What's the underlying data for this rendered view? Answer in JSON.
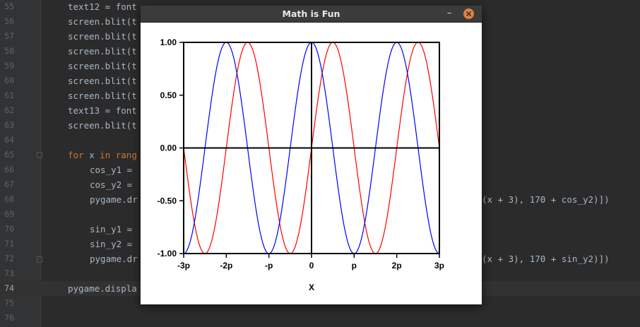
{
  "window": {
    "title": "Math is Fun",
    "minimize_label": "–"
  },
  "editor": {
    "lines": [
      {
        "num": "55",
        "code": "text12 = font"
      },
      {
        "num": "56",
        "code": "screen.blit(t"
      },
      {
        "num": "57",
        "code": "screen.blit(t"
      },
      {
        "num": "58",
        "code": "screen.blit(t"
      },
      {
        "num": "59",
        "code": "screen.blit(t"
      },
      {
        "num": "60",
        "code": "screen.blit(t"
      },
      {
        "num": "61",
        "code": "screen.blit(t"
      },
      {
        "num": "62",
        "code": "text13 = font"
      },
      {
        "num": "63",
        "code": "screen.blit(t"
      },
      {
        "num": "64",
        "code": ""
      },
      {
        "num": "65",
        "code": "for x in rang"
      },
      {
        "num": "66",
        "code": "cos_y1 ="
      },
      {
        "num": "67",
        "code": "cos_y2 ="
      },
      {
        "num": "68",
        "code": "pygame.dr"
      },
      {
        "num": "69",
        "code": ""
      },
      {
        "num": "70",
        "code": "sin_y1 ="
      },
      {
        "num": "71",
        "code": "sin_y2 ="
      },
      {
        "num": "72",
        "code": "pygame.dr"
      },
      {
        "num": "73",
        "code": ""
      },
      {
        "num": "74",
        "code": "pygame.displa"
      },
      {
        "num": "75",
        "code": ""
      },
      {
        "num": "76",
        "code": ""
      }
    ],
    "overflow_68": "(x + 3), 170 + cos_y2)])",
    "overflow_72": "(x + 3), 170 + sin_y2)])"
  },
  "chart_data": {
    "type": "line",
    "title": "",
    "xlabel": "X",
    "ylabel": "",
    "xlim": [
      -3,
      3
    ],
    "ylim": [
      -1,
      1
    ],
    "x_unit": "pi",
    "x_ticks": [
      -3,
      -2,
      -1,
      0,
      1,
      2,
      3
    ],
    "x_tick_labels": [
      "-3p",
      "-2p",
      "-p",
      "0",
      "p",
      "2p",
      "3p"
    ],
    "y_ticks": [
      1,
      0.5,
      0,
      -0.5,
      -1
    ],
    "y_tick_labels": [
      "1.00",
      "0.50",
      "0.00",
      "-0.50",
      "-1.00"
    ],
    "series": [
      {
        "function": "sin",
        "color": "#ff0000"
      },
      {
        "function": "cos",
        "color": "#0000ff"
      }
    ]
  }
}
